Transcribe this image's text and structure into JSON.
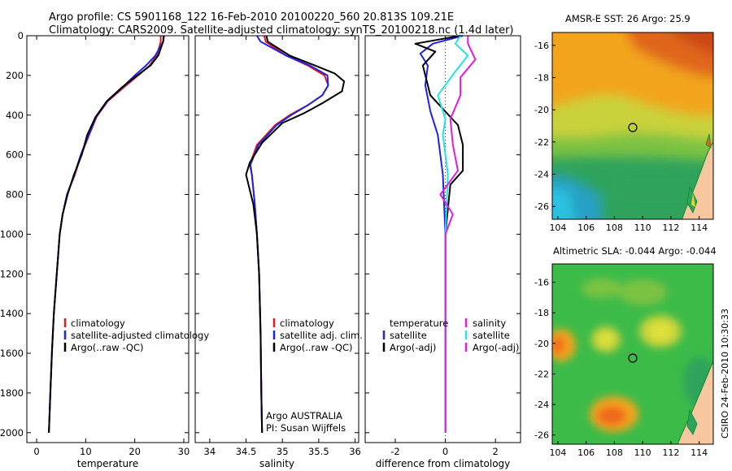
{
  "header": {
    "line1": "Argo profile: CS 5901168_122 16-Feb-2010 20100220_560 20.813S 109.21E",
    "line2": "Climatology: CARS2009. Satellite-adjusted climatology: synTS_20100218.nc (1.4d later)"
  },
  "footer": {
    "agency": "Argo AUSTRALIA",
    "pi": "PI: Susan Wijffels",
    "stamp": "CSIRO 24-Feb-2010 10:30:33"
  },
  "maps": {
    "sst_title": "AMSR-E SST: 26 Argo: 25.9",
    "sla_title": "Altimetric SLA: -0.044 Argo: -0.044",
    "x_ticks": [
      "104",
      "106",
      "108",
      "110",
      "112",
      "114"
    ],
    "y_ticks": [
      "-16",
      "-18",
      "-20",
      "-22",
      "-24",
      "-26"
    ],
    "float_marker": {
      "lon": 109.21,
      "lat": -20.813
    }
  },
  "colors": {
    "climatology": "#e41a1c",
    "satellite": "#1f22e8",
    "argo": "#000000",
    "sal_satellite": "#22e4e4",
    "sal_argo": "#e41ae4",
    "land": "#f7c8a0",
    "coast": "#0a8a2a"
  },
  "chart_data": [
    {
      "type": "line",
      "xlabel": "temperature",
      "ylabel": "",
      "xlim": [
        -2,
        31
      ],
      "ylim": [
        2050,
        0
      ],
      "x_ticks": [
        0,
        10,
        20,
        30
      ],
      "y_ticks": [
        0,
        200,
        400,
        600,
        800,
        1000,
        1200,
        1400,
        1600,
        1800,
        2000
      ],
      "legend": [
        "climatology",
        "satellite-adjusted climatology",
        "Argo(..raw -QC)"
      ],
      "legend_position": "lower-right",
      "series": [
        {
          "name": "climatology",
          "color": "#e41a1c",
          "x": [
            25.3,
            25.3,
            24.5,
            23.0,
            20.7,
            17.8,
            14.5,
            12.2,
            10.7,
            9.1,
            7.8,
            6.2,
            5.3,
            4.7,
            4.1,
            3.5,
            3.1,
            2.8,
            2.5
          ],
          "y": [
            0,
            30,
            100,
            150,
            200,
            260,
            330,
            410,
            500,
            600,
            700,
            800,
            900,
            1000,
            1200,
            1400,
            1600,
            1800,
            2000
          ]
        },
        {
          "name": "satellite-adjusted climatology",
          "color": "#1f22e8",
          "x": [
            26.0,
            25.8,
            24.2,
            22.3,
            20.0,
            17.5,
            14.4,
            12.1,
            10.6,
            9.0,
            7.7,
            6.2,
            5.3,
            4.7,
            4.1,
            3.5,
            3.1,
            2.8,
            2.5
          ],
          "y": [
            0,
            30,
            100,
            150,
            200,
            260,
            330,
            410,
            500,
            600,
            700,
            800,
            900,
            1000,
            1200,
            1400,
            1600,
            1800,
            2000
          ]
        },
        {
          "name": "Argo(..raw -QC)",
          "color": "#000000",
          "x": [
            25.9,
            25.8,
            24.8,
            23.2,
            20.5,
            17.4,
            14.3,
            12.0,
            10.3,
            9.2,
            7.6,
            6.3,
            5.3,
            4.7,
            4.1,
            3.5,
            3.1,
            2.8,
            2.5
          ],
          "y": [
            0,
            30,
            100,
            150,
            200,
            260,
            330,
            410,
            500,
            600,
            700,
            800,
            900,
            1000,
            1200,
            1400,
            1600,
            1800,
            2000
          ]
        }
      ]
    },
    {
      "type": "line",
      "xlabel": "salinity",
      "ylabel": "",
      "xlim": [
        33.8,
        36.05
      ],
      "ylim": [
        2050,
        0
      ],
      "x_ticks": [
        34,
        34.5,
        35,
        35.5,
        36
      ],
      "legend": [
        "climatology",
        "satellite adj. clim.",
        "Argo(..raw -QC)"
      ],
      "legend_position": "lower-right",
      "series": [
        {
          "name": "climatology",
          "color": "#e41a1c",
          "x": [
            34.75,
            34.77,
            35.05,
            35.35,
            35.58,
            35.63,
            35.55,
            35.35,
            35.1,
            34.9,
            34.65,
            34.55,
            34.58,
            34.62,
            34.65,
            34.68,
            34.7,
            34.71,
            34.72
          ],
          "y": [
            0,
            30,
            100,
            150,
            200,
            250,
            300,
            350,
            400,
            450,
            550,
            650,
            700,
            850,
            1000,
            1200,
            1500,
            1800,
            2000
          ]
        },
        {
          "name": "satellite adj. clim.",
          "color": "#1f22e8",
          "x": [
            34.65,
            34.7,
            35.05,
            35.38,
            35.62,
            35.63,
            35.55,
            35.35,
            35.12,
            34.92,
            34.67,
            34.56,
            34.58,
            34.62,
            34.65,
            34.68,
            34.7,
            34.71,
            34.72
          ],
          "y": [
            0,
            30,
            100,
            150,
            200,
            250,
            300,
            350,
            400,
            450,
            550,
            650,
            700,
            850,
            1000,
            1200,
            1500,
            1800,
            2000
          ]
        },
        {
          "name": "Argo(..raw -QC)",
          "color": "#000000",
          "x": [
            34.78,
            34.8,
            35.1,
            35.45,
            35.72,
            35.85,
            35.82,
            35.55,
            35.3,
            35.0,
            34.72,
            34.55,
            34.5,
            34.6,
            34.65,
            34.68,
            34.7,
            34.71,
            34.72
          ],
          "y": [
            0,
            30,
            100,
            150,
            190,
            230,
            280,
            340,
            390,
            440,
            540,
            640,
            700,
            850,
            1000,
            1200,
            1500,
            1800,
            2000
          ]
        }
      ]
    },
    {
      "type": "line",
      "xlabel": "difference from climatology",
      "ylabel": "",
      "xlim": [
        -3.2,
        3.0
      ],
      "ylim": [
        2050,
        0
      ],
      "x_ticks": [
        -2,
        0,
        2
      ],
      "legend": [
        "temperature",
        "satellite",
        "Argo(-adj)",
        "salinity",
        "satellite",
        "Argo(-adj)"
      ],
      "legend_position": "lower-center",
      "series": [
        {
          "name": "satellite",
          "group": "temperature",
          "color": "#1f22e8",
          "x": [
            0.7,
            -0.5,
            -1.0,
            -0.7,
            -0.8,
            -0.6,
            -0.3,
            -0.1,
            0.0,
            0.0,
            0.0,
            0.0
          ],
          "y": [
            0,
            40,
            90,
            150,
            250,
            380,
            500,
            700,
            1000,
            1400,
            1800,
            2000
          ]
        },
        {
          "name": "Argo(-adj)",
          "group": "temperature",
          "color": "#000000",
          "x": [
            0.6,
            -1.2,
            -0.4,
            -0.9,
            -0.6,
            0.5,
            0.7,
            0.7,
            0.2,
            0.0,
            0.0,
            0.0
          ],
          "y": [
            0,
            40,
            80,
            150,
            300,
            450,
            550,
            680,
            750,
            1000,
            1500,
            2000
          ]
        },
        {
          "name": "satellite",
          "group": "salinity",
          "color": "#22e4e4",
          "x": [
            0.6,
            0.4,
            0.9,
            0.4,
            -0.3,
            0.0,
            -0.1,
            0.1,
            0.0,
            0.0,
            0.0,
            0.0
          ],
          "y": [
            0,
            40,
            100,
            180,
            300,
            420,
            500,
            700,
            1000,
            1400,
            1800,
            2000
          ]
        },
        {
          "name": "Argo(-adj)",
          "group": "salinity",
          "color": "#e41ae4",
          "x": [
            0.9,
            0.9,
            1.2,
            0.6,
            0.6,
            0.2,
            0.3,
            0.5,
            -0.2,
            0.3,
            0.0,
            0.0
          ],
          "y": [
            0,
            40,
            120,
            210,
            300,
            420,
            550,
            680,
            800,
            900,
            1000,
            2000
          ]
        }
      ]
    }
  ]
}
